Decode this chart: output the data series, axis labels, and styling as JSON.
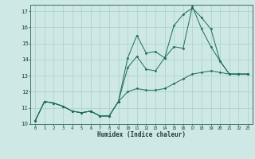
{
  "xlabel": "Humidex (Indice chaleur)",
  "background_color": "#cde8e5",
  "grid_color": "#aacfcc",
  "line_color": "#1e6b5e",
  "xlim": [
    -0.5,
    23.5
  ],
  "ylim": [
    10,
    17.4
  ],
  "yticks": [
    10,
    11,
    12,
    13,
    14,
    15,
    16,
    17
  ],
  "xticks": [
    0,
    1,
    2,
    3,
    4,
    5,
    6,
    7,
    8,
    9,
    10,
    11,
    12,
    13,
    14,
    15,
    16,
    17,
    18,
    19,
    20,
    21,
    22,
    23
  ],
  "series": [
    {
      "x": [
        0,
        1,
        2,
        3,
        4,
        5,
        6,
        7,
        8,
        9,
        10,
        11,
        12,
        13,
        14,
        15,
        16,
        17,
        18,
        19,
        20,
        21,
        22,
        23
      ],
      "y": [
        10.2,
        11.4,
        11.3,
        11.1,
        10.8,
        10.7,
        10.8,
        10.5,
        10.5,
        11.4,
        12.0,
        12.2,
        12.1,
        12.1,
        12.2,
        12.5,
        12.8,
        13.1,
        13.2,
        13.3,
        13.2,
        13.1,
        13.1,
        13.1
      ]
    },
    {
      "x": [
        0,
        1,
        2,
        3,
        4,
        5,
        6,
        7,
        8,
        9,
        10,
        11,
        12,
        13,
        14,
        15,
        16,
        17,
        18,
        19,
        20,
        21,
        22,
        23
      ],
      "y": [
        10.2,
        11.4,
        11.3,
        11.1,
        10.8,
        10.7,
        10.8,
        10.5,
        10.5,
        11.4,
        13.5,
        14.2,
        13.4,
        13.3,
        14.1,
        14.8,
        14.7,
        17.3,
        15.9,
        14.8,
        13.9,
        13.1,
        13.1,
        13.1
      ]
    },
    {
      "x": [
        0,
        1,
        2,
        3,
        4,
        5,
        6,
        7,
        8,
        9,
        10,
        11,
        12,
        13,
        14,
        15,
        16,
        17,
        18,
        19,
        20,
        21,
        22,
        23
      ],
      "y": [
        10.2,
        11.4,
        11.3,
        11.1,
        10.8,
        10.7,
        10.8,
        10.5,
        10.5,
        11.4,
        14.1,
        15.5,
        14.4,
        14.5,
        14.1,
        16.1,
        16.8,
        17.2,
        16.6,
        15.9,
        13.9,
        13.1,
        13.1,
        13.1
      ]
    }
  ]
}
